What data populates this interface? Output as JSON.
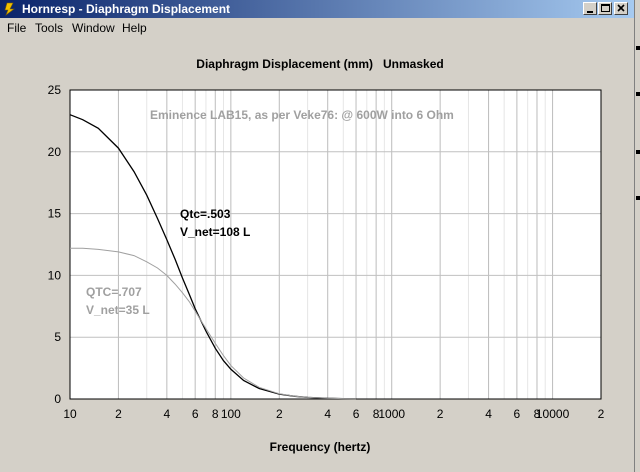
{
  "window": {
    "title": "Hornresp - Diaphragm Displacement",
    "buttons": [
      "minimize-button",
      "maximize-button",
      "close-button"
    ]
  },
  "menu": {
    "items": [
      "File",
      "Tools",
      "Window",
      "Help"
    ]
  },
  "colors": {
    "background": "#d4d0c8",
    "plot_area": "#ffffff",
    "grid": "#c0c0c0",
    "series_1": "#000000",
    "series_2": "#a0a0a0"
  },
  "chart_data": {
    "type": "line",
    "title": "Diaphragm Displacement (mm)   Unmasked",
    "xlabel": "Frequency (hertz)",
    "ylabel": "",
    "xscale": "log",
    "xlim": [
      10,
      20000
    ],
    "ylim": [
      0,
      25
    ],
    "grid": true,
    "x_tick_labels": [
      "10",
      "2",
      "4",
      "6",
      "8",
      "100",
      "2",
      "4",
      "6",
      "8",
      "1000",
      "2",
      "4",
      "6",
      "8",
      "10000",
      "2"
    ],
    "x_tick_values": [
      10,
      20,
      40,
      60,
      80,
      100,
      200,
      400,
      600,
      800,
      1000,
      2000,
      4000,
      6000,
      8000,
      10000,
      20000
    ],
    "y_tick_labels": [
      "0",
      "5",
      "10",
      "15",
      "20",
      "25"
    ],
    "y_tick_values": [
      0,
      5,
      10,
      15,
      20,
      25
    ],
    "annotations": [
      {
        "text": "Eminence LAB15, as per Veke76:  @ 600W into 6 Ohm",
        "color": "#a0a0a0"
      },
      {
        "text": "Qtc=.503",
        "color": "#000000"
      },
      {
        "text": "V_net=108 L",
        "color": "#000000"
      },
      {
        "text": "QTC=.707",
        "color": "#a0a0a0"
      },
      {
        "text": "V_net=35 L",
        "color": "#a0a0a0"
      }
    ],
    "series": [
      {
        "x": [
          10,
          12,
          15,
          20,
          25,
          30,
          35,
          40,
          45,
          50,
          55,
          60,
          70,
          80,
          90,
          100,
          120,
          150,
          200,
          250,
          300,
          400,
          500,
          600
        ],
        "values": [
          23.0,
          22.6,
          21.9,
          20.3,
          18.4,
          16.5,
          14.6,
          12.9,
          11.3,
          9.8,
          8.5,
          7.3,
          5.5,
          4.1,
          3.1,
          2.4,
          1.5,
          0.85,
          0.4,
          0.22,
          0.13,
          0.06,
          0.03,
          0.02
        ],
        "color": "#000000"
      },
      {
        "x": [
          10,
          12,
          15,
          20,
          25,
          30,
          35,
          40,
          45,
          50,
          55,
          60,
          70,
          80,
          90,
          100,
          120,
          150,
          200,
          250,
          300,
          400,
          500,
          600
        ],
        "values": [
          12.2,
          12.2,
          12.1,
          11.9,
          11.6,
          11.1,
          10.6,
          10.0,
          9.3,
          8.6,
          7.9,
          7.1,
          5.7,
          4.5,
          3.5,
          2.7,
          1.7,
          0.95,
          0.42,
          0.22,
          0.13,
          0.06,
          0.03,
          0.02
        ],
        "color": "#a0a0a0"
      }
    ]
  }
}
